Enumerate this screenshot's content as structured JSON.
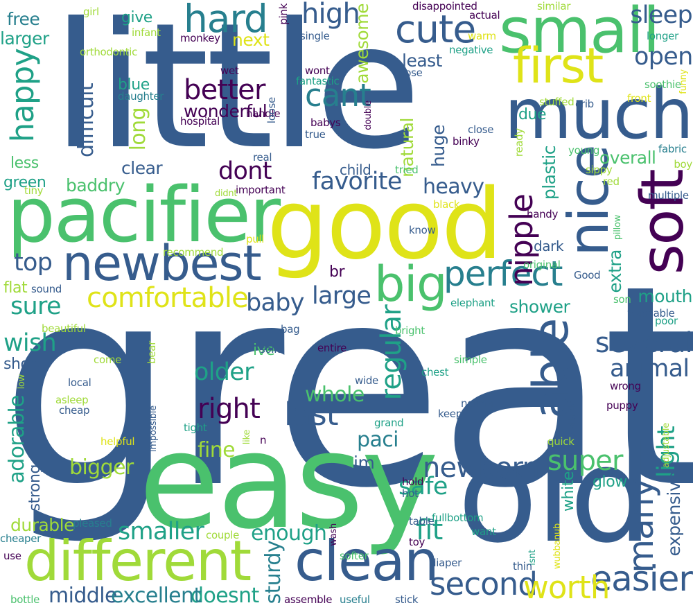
{
  "palette": {
    "dark_purple": "#440154",
    "navy_blue": "#365c8d",
    "teal": "#277f8e",
    "sea_green": "#1fa187",
    "green": "#4ac16d",
    "lime": "#a0da39",
    "yellow": "#dfe318"
  },
  "words": [
    {
      "text": "great",
      "color": "navy_blue"
    },
    {
      "text": "little",
      "color": "navy_blue"
    },
    {
      "text": "easy",
      "color": "green"
    },
    {
      "text": "good",
      "color": "yellow"
    },
    {
      "text": "old",
      "color": "navy_blue"
    },
    {
      "text": "pacifier",
      "color": "green"
    },
    {
      "text": "much",
      "color": "navy_blue"
    },
    {
      "text": "small",
      "color": "green"
    },
    {
      "text": "clean",
      "color": "navy_blue"
    },
    {
      "text": "different",
      "color": "lime"
    },
    {
      "text": "nice",
      "color": "navy_blue"
    },
    {
      "text": "soft",
      "color": "dark_purple"
    },
    {
      "text": "newbest",
      "color": "navy_blue"
    },
    {
      "text": "able",
      "color": "navy_blue"
    },
    {
      "text": "first",
      "color": "yellow"
    },
    {
      "text": "big",
      "color": "green"
    },
    {
      "text": "perfect",
      "color": "teal"
    },
    {
      "text": "hard",
      "color": "teal"
    },
    {
      "text": "comfortable",
      "color": "yellow"
    },
    {
      "text": "cute",
      "color": "navy_blue"
    },
    {
      "text": "easier",
      "color": "navy_blue"
    },
    {
      "text": "many",
      "color": "navy_blue"
    },
    {
      "text": "second",
      "color": "navy_blue"
    },
    {
      "text": "worth",
      "color": "yellow"
    },
    {
      "text": "cant",
      "color": "teal"
    },
    {
      "text": "newborn",
      "color": "navy_blue"
    },
    {
      "text": "better",
      "color": "dark_purple"
    },
    {
      "text": "happy",
      "color": "sea_green"
    },
    {
      "text": "high",
      "color": "navy_blue"
    },
    {
      "text": "favorite",
      "color": "navy_blue"
    },
    {
      "text": "nipple",
      "color": "dark_purple"
    },
    {
      "text": "several",
      "color": "navy_blue"
    },
    {
      "text": "super",
      "color": "green"
    },
    {
      "text": "fit",
      "color": "sea_green"
    },
    {
      "text": "right",
      "color": "dark_purple"
    },
    {
      "text": "last",
      "color": "navy_blue"
    },
    {
      "text": "smaller",
      "color": "sea_green"
    },
    {
      "text": "regular",
      "color": "sea_green"
    },
    {
      "text": "animal",
      "color": "navy_blue"
    },
    {
      "text": "older",
      "color": "sea_green"
    },
    {
      "text": "baby",
      "color": "navy_blue"
    },
    {
      "text": "large",
      "color": "navy_blue"
    },
    {
      "text": "sure",
      "color": "sea_green"
    },
    {
      "text": "adorable",
      "color": "sea_green"
    },
    {
      "text": "light",
      "color": "sea_green"
    },
    {
      "text": "long",
      "color": "lime"
    },
    {
      "text": "difficult",
      "color": "navy_blue"
    },
    {
      "text": "dont",
      "color": "dark_purple"
    },
    {
      "text": "open",
      "color": "navy_blue"
    },
    {
      "text": "sleep",
      "color": "navy_blue"
    },
    {
      "text": "safe",
      "color": "sea_green"
    },
    {
      "text": "wonderful",
      "color": "dark_purple"
    },
    {
      "text": "mouth",
      "color": "sea_green"
    },
    {
      "text": "enough",
      "color": "sea_green"
    },
    {
      "text": "top",
      "color": "navy_blue"
    },
    {
      "text": "wish",
      "color": "sea_green"
    },
    {
      "text": "whole",
      "color": "green"
    },
    {
      "text": "heavy",
      "color": "navy_blue"
    },
    {
      "text": "sturdy",
      "color": "teal"
    },
    {
      "text": "middle",
      "color": "navy_blue"
    },
    {
      "text": "doesnt",
      "color": "sea_green"
    },
    {
      "text": "excellent",
      "color": "teal"
    },
    {
      "text": "overall",
      "color": "green"
    },
    {
      "text": "paci",
      "color": "teal"
    },
    {
      "text": "expensive",
      "color": "navy_blue"
    },
    {
      "text": "plastic",
      "color": "sea_green"
    },
    {
      "text": "extra",
      "color": "sea_green"
    },
    {
      "text": "fine",
      "color": "lime"
    },
    {
      "text": "bigger",
      "color": "lime"
    },
    {
      "text": "awesome",
      "color": "lime"
    },
    {
      "text": "next",
      "color": "yellow"
    },
    {
      "text": "shower",
      "color": "sea_green"
    },
    {
      "text": "least",
      "color": "navy_blue"
    },
    {
      "text": "huge",
      "color": "navy_blue"
    },
    {
      "text": "clear",
      "color": "navy_blue"
    },
    {
      "text": "baddry",
      "color": "green"
    },
    {
      "text": "short",
      "color": "navy_blue"
    },
    {
      "text": "glow",
      "color": "sea_green"
    },
    {
      "text": "natural",
      "color": "lime"
    },
    {
      "text": "durable",
      "color": "lime"
    },
    {
      "text": "larger",
      "color": "sea_green"
    },
    {
      "text": "free",
      "color": "teal"
    },
    {
      "text": "give",
      "color": "sea_green"
    },
    {
      "text": "due",
      "color": "sea_green"
    },
    {
      "text": "child",
      "color": "navy_blue"
    },
    {
      "text": "ive",
      "color": "green"
    },
    {
      "text": "im",
      "color": "navy_blue"
    },
    {
      "text": "strong",
      "color": "navy_blue"
    },
    {
      "text": "green",
      "color": "sea_green"
    },
    {
      "text": "less",
      "color": "green"
    },
    {
      "text": "flat",
      "color": "lime"
    },
    {
      "text": "dark",
      "color": "navy_blue"
    },
    {
      "text": "br",
      "color": "dark_purple"
    },
    {
      "text": "white",
      "color": "sea_green"
    },
    {
      "text": "blue",
      "color": "sea_green"
    },
    {
      "text": "girl",
      "color": "lime"
    },
    {
      "text": "infant",
      "color": "lime"
    },
    {
      "text": "orthodontic",
      "color": "lime"
    },
    {
      "text": "monkey",
      "color": "dark_purple"
    },
    {
      "text": "wet",
      "color": "dark_purple"
    },
    {
      "text": "daughter",
      "color": "teal"
    },
    {
      "text": "hospital",
      "color": "dark_purple"
    },
    {
      "text": "handle",
      "color": "dark_purple"
    },
    {
      "text": "loose",
      "color": "navy_blue"
    },
    {
      "text": "pink",
      "color": "dark_purple"
    },
    {
      "text": "single",
      "color": "navy_blue"
    },
    {
      "text": "wont",
      "color": "dark_purple"
    },
    {
      "text": "fantastic",
      "color": "sea_green"
    },
    {
      "text": "babys",
      "color": "dark_purple"
    },
    {
      "text": "true",
      "color": "navy_blue"
    },
    {
      "text": "double",
      "color": "dark_purple"
    },
    {
      "text": "disappointed",
      "color": "dark_purple"
    },
    {
      "text": "actual",
      "color": "dark_purple"
    },
    {
      "text": "similar",
      "color": "lime"
    },
    {
      "text": "warm",
      "color": "yellow"
    },
    {
      "text": "negative",
      "color": "sea_green"
    },
    {
      "text": "nose",
      "color": "navy_blue"
    },
    {
      "text": "longer",
      "color": "sea_green"
    },
    {
      "text": "soothie",
      "color": "green"
    },
    {
      "text": "funny",
      "color": "yellow"
    },
    {
      "text": "front",
      "color": "yellow"
    },
    {
      "text": "stuffed",
      "color": "lime"
    },
    {
      "text": "crib",
      "color": "navy_blue"
    },
    {
      "text": "close",
      "color": "navy_blue"
    },
    {
      "text": "binky",
      "color": "dark_purple"
    },
    {
      "text": "ready",
      "color": "lime"
    },
    {
      "text": "young",
      "color": "green"
    },
    {
      "text": "fabric",
      "color": "teal"
    },
    {
      "text": "boy",
      "color": "lime"
    },
    {
      "text": "sippy",
      "color": "lime"
    },
    {
      "text": "red",
      "color": "lime"
    },
    {
      "text": "multiple",
      "color": "navy_blue"
    },
    {
      "text": "pillow",
      "color": "green"
    },
    {
      "text": "black",
      "color": "yellow"
    },
    {
      "text": "handy",
      "color": "dark_purple"
    },
    {
      "text": "real",
      "color": "navy_blue"
    },
    {
      "text": "tried",
      "color": "green"
    },
    {
      "text": "important",
      "color": "dark_purple"
    },
    {
      "text": "didnt",
      "color": "lime"
    },
    {
      "text": "tiny",
      "color": "lime"
    },
    {
      "text": "recommend",
      "color": "lime"
    },
    {
      "text": "pull",
      "color": "yellow"
    },
    {
      "text": "know",
      "color": "navy_blue"
    },
    {
      "text": "original",
      "color": "green"
    },
    {
      "text": "Good",
      "color": "navy_blue"
    },
    {
      "text": "sound",
      "color": "navy_blue"
    },
    {
      "text": "elephant",
      "color": "sea_green"
    },
    {
      "text": "son",
      "color": "green"
    },
    {
      "text": "beautiful",
      "color": "lime"
    },
    {
      "text": "bag",
      "color": "navy_blue"
    },
    {
      "text": "bright",
      "color": "green"
    },
    {
      "text": "washable",
      "color": "navy_blue"
    },
    {
      "text": "poor",
      "color": "sea_green"
    },
    {
      "text": "solid",
      "color": "navy_blue"
    },
    {
      "text": "entire",
      "color": "dark_purple"
    },
    {
      "text": "local",
      "color": "navy_blue"
    },
    {
      "text": "come",
      "color": "lime"
    },
    {
      "text": "bear",
      "color": "lime"
    },
    {
      "text": "simple",
      "color": "green"
    },
    {
      "text": "chest",
      "color": "sea_green"
    },
    {
      "text": "wrong",
      "color": "dark_purple"
    },
    {
      "text": "low",
      "color": "lime"
    },
    {
      "text": "asleep",
      "color": "lime"
    },
    {
      "text": "wide",
      "color": "navy_blue"
    },
    {
      "text": "normal",
      "color": "navy_blue"
    },
    {
      "text": "puppy",
      "color": "dark_purple"
    },
    {
      "text": "cheap",
      "color": "navy_blue"
    },
    {
      "text": "impossible",
      "color": "navy_blue"
    },
    {
      "text": "grand",
      "color": "sea_green"
    },
    {
      "text": "keep",
      "color": "navy_blue"
    },
    {
      "text": "available",
      "color": "navy_blue"
    },
    {
      "text": "adjustable",
      "color": "lime"
    },
    {
      "text": "tight",
      "color": "sea_green"
    },
    {
      "text": "like",
      "color": "lime"
    },
    {
      "text": "n",
      "color": "dark_purple"
    },
    {
      "text": "quick",
      "color": "lime"
    },
    {
      "text": "helpful",
      "color": "yellow"
    },
    {
      "text": "hold",
      "color": "dark_purple"
    },
    {
      "text": "hot",
      "color": "navy_blue"
    },
    {
      "text": "wubbanub",
      "color": "yellow"
    },
    {
      "text": "pleased",
      "color": "teal"
    },
    {
      "text": "table",
      "color": "navy_blue"
    },
    {
      "text": "fullbottom",
      "color": "sea_green"
    },
    {
      "text": "want",
      "color": "sea_green"
    },
    {
      "text": "cheaper",
      "color": "teal"
    },
    {
      "text": "couple",
      "color": "lime"
    },
    {
      "text": "wash",
      "color": "dark_purple"
    },
    {
      "text": "toy",
      "color": "dark_purple"
    },
    {
      "text": "use",
      "color": "dark_purple"
    },
    {
      "text": "softer",
      "color": "green"
    },
    {
      "text": "diaper",
      "color": "navy_blue"
    },
    {
      "text": "isnt",
      "color": "sea_green"
    },
    {
      "text": "thin",
      "color": "navy_blue"
    },
    {
      "text": "bottle",
      "color": "green"
    },
    {
      "text": "assemble",
      "color": "dark_purple"
    },
    {
      "text": "useful",
      "color": "teal"
    },
    {
      "text": "stick",
      "color": "navy_blue"
    }
  ]
}
